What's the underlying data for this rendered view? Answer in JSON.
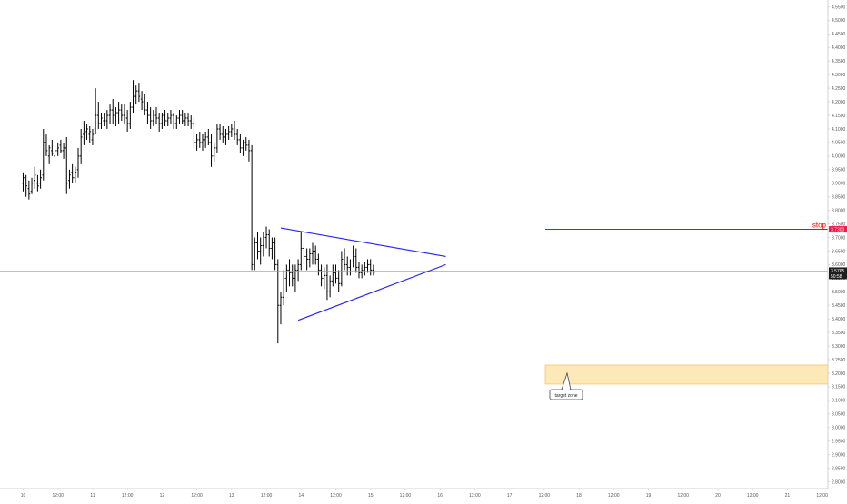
{
  "chart_data": {
    "type": "ohlc",
    "title": "",
    "xlabel": "",
    "ylabel": "",
    "ylim": [
      2.775,
      4.575
    ],
    "y_ticks": [
      "2.8000",
      "2.8500",
      "2.9000",
      "2.9500",
      "3.0000",
      "3.0500",
      "3.1000",
      "3.1500",
      "3.2000",
      "3.2500",
      "3.3000",
      "3.3500",
      "3.4000",
      "3.4500",
      "3.5000",
      "3.5500",
      "3.6000",
      "3.6500",
      "3.7000",
      "3.7500",
      "3.8000",
      "3.8500",
      "3.9000",
      "3.9500",
      "4.0000",
      "4.0500",
      "4.1000",
      "4.1500",
      "4.2000",
      "4.2500",
      "4.3000",
      "4.3500",
      "4.4000",
      "4.4500",
      "4.5000",
      "4.5500"
    ],
    "x_ticks": [
      "10",
      "12:00",
      "11",
      "12:00",
      "12",
      "12:00",
      "13",
      "12:00",
      "14",
      "12:00",
      "15",
      "12:00",
      "16",
      "12:00",
      "17",
      "12:00",
      "18",
      "12:00",
      "19",
      "12:00",
      "20",
      "12:00",
      "21",
      "12:00"
    ],
    "x_tick_index": [
      0,
      12,
      24,
      36,
      48,
      60,
      72,
      84,
      96,
      108,
      120,
      132,
      144,
      156,
      168,
      180,
      192,
      204,
      216,
      228,
      240,
      252,
      264,
      276
    ],
    "x_index_range": [
      -8,
      278
    ],
    "ohlc_keys": [
      "open",
      "high",
      "low",
      "close"
    ],
    "bars": [
      [
        3.9,
        3.94,
        3.87,
        3.92
      ],
      [
        3.9,
        3.93,
        3.85,
        3.89
      ],
      [
        3.88,
        3.91,
        3.84,
        3.86
      ],
      [
        3.87,
        3.92,
        3.86,
        3.9
      ],
      [
        3.91,
        3.96,
        3.88,
        3.93
      ],
      [
        3.9,
        3.93,
        3.87,
        3.89
      ],
      [
        3.9,
        3.95,
        3.88,
        3.92
      ],
      [
        3.93,
        4.1,
        3.91,
        4.05
      ],
      [
        4.05,
        4.08,
        4.0,
        4.02
      ],
      [
        4.0,
        4.04,
        3.97,
        4.03
      ],
      [
        4.02,
        4.06,
        4.0,
        4.01
      ],
      [
        4.0,
        4.04,
        3.98,
        4.02
      ],
      [
        4.02,
        4.05,
        4.0,
        4.03
      ],
      [
        4.04,
        4.06,
        4.01,
        4.02
      ],
      [
        4.02,
        4.05,
        3.99,
        4.03
      ],
      [
        4.03,
        4.07,
        3.86,
        3.9
      ],
      [
        3.91,
        3.95,
        3.88,
        3.93
      ],
      [
        3.94,
        3.97,
        3.9,
        3.92
      ],
      [
        3.92,
        3.96,
        3.9,
        3.94
      ],
      [
        3.95,
        4.03,
        3.92,
        4.0
      ],
      [
        4.0,
        4.1,
        3.97,
        4.07
      ],
      [
        4.08,
        4.13,
        4.04,
        4.1
      ],
      [
        4.09,
        4.12,
        4.06,
        4.1
      ],
      [
        4.08,
        4.11,
        4.05,
        4.09
      ],
      [
        4.06,
        4.1,
        4.04,
        4.08
      ],
      [
        4.1,
        4.25,
        4.08,
        4.15
      ],
      [
        4.15,
        4.2,
        4.1,
        4.12
      ],
      [
        4.12,
        4.16,
        4.1,
        4.14
      ],
      [
        4.13,
        4.16,
        4.11,
        4.14
      ],
      [
        4.13,
        4.17,
        4.1,
        4.15
      ],
      [
        4.15,
        4.19,
        4.12,
        4.17
      ],
      [
        4.17,
        4.21,
        4.12,
        4.15
      ],
      [
        4.14,
        4.18,
        4.11,
        4.16
      ],
      [
        4.16,
        4.2,
        4.12,
        4.17
      ],
      [
        4.17,
        4.19,
        4.13,
        4.15
      ],
      [
        4.15,
        4.19,
        4.12,
        4.14
      ],
      [
        4.14,
        4.17,
        4.09,
        4.12
      ],
      [
        4.12,
        4.2,
        4.1,
        4.18
      ],
      [
        4.18,
        4.28,
        4.16,
        4.22
      ],
      [
        4.22,
        4.26,
        4.19,
        4.24
      ],
      [
        4.24,
        4.27,
        4.2,
        4.22
      ],
      [
        4.21,
        4.24,
        4.17,
        4.2
      ],
      [
        4.2,
        4.23,
        4.15,
        4.17
      ],
      [
        4.17,
        4.2,
        4.12,
        4.15
      ],
      [
        4.15,
        4.18,
        4.1,
        4.13
      ],
      [
        4.13,
        4.17,
        4.11,
        4.15
      ],
      [
        4.15,
        4.18,
        4.12,
        4.14
      ],
      [
        4.14,
        4.16,
        4.09,
        4.12
      ],
      [
        4.12,
        4.16,
        4.1,
        4.15
      ],
      [
        4.15,
        4.17,
        4.11,
        4.13
      ],
      [
        4.13,
        4.16,
        4.11,
        4.14
      ],
      [
        4.14,
        4.17,
        4.12,
        4.15
      ],
      [
        4.15,
        4.16,
        4.1,
        4.12
      ],
      [
        4.12,
        4.15,
        4.1,
        4.14
      ],
      [
        4.14,
        4.17,
        4.12,
        4.15
      ],
      [
        4.15,
        4.17,
        4.12,
        4.13
      ],
      [
        4.13,
        4.16,
        4.11,
        4.14
      ],
      [
        4.14,
        4.16,
        4.11,
        4.13
      ],
      [
        4.13,
        4.15,
        4.1,
        4.12
      ],
      [
        4.12,
        4.14,
        4.03,
        4.05
      ],
      [
        4.05,
        4.08,
        4.02,
        4.06
      ],
      [
        4.06,
        4.09,
        4.03,
        4.05
      ],
      [
        4.05,
        4.08,
        4.02,
        4.06
      ],
      [
        4.06,
        4.09,
        4.03,
        4.07
      ],
      [
        4.07,
        4.1,
        4.04,
        4.05
      ],
      [
        4.05,
        4.08,
        3.96,
        4.0
      ],
      [
        4.0,
        4.05,
        3.98,
        4.03
      ],
      [
        4.03,
        4.12,
        4.01,
        4.1
      ],
      [
        4.1,
        4.12,
        4.06,
        4.08
      ],
      [
        4.08,
        4.11,
        4.05,
        4.07
      ],
      [
        4.07,
        4.1,
        4.04,
        4.08
      ],
      [
        4.08,
        4.11,
        4.06,
        4.09
      ],
      [
        4.09,
        4.12,
        4.07,
        4.1
      ],
      [
        4.1,
        4.13,
        4.06,
        4.08
      ],
      [
        4.08,
        4.1,
        4.04,
        4.06
      ],
      [
        4.06,
        4.08,
        4.01,
        4.03
      ],
      [
        4.03,
        4.06,
        4.0,
        4.05
      ],
      [
        4.05,
        4.07,
        4.02,
        4.04
      ],
      [
        4.04,
        4.06,
        3.98,
        4.02
      ],
      [
        4.02,
        4.04,
        3.58,
        3.6
      ],
      [
        3.6,
        3.7,
        3.58,
        3.68
      ],
      [
        3.68,
        3.72,
        3.62,
        3.65
      ],
      [
        3.65,
        3.7,
        3.6,
        3.67
      ],
      [
        3.67,
        3.72,
        3.63,
        3.7
      ],
      [
        3.7,
        3.74,
        3.66,
        3.71
      ],
      [
        3.71,
        3.73,
        3.63,
        3.66
      ],
      [
        3.66,
        3.7,
        3.62,
        3.68
      ],
      [
        3.68,
        3.7,
        3.58,
        3.6
      ],
      [
        3.6,
        3.62,
        3.31,
        3.45
      ],
      [
        3.45,
        3.5,
        3.38,
        3.48
      ],
      [
        3.48,
        3.58,
        3.45,
        3.55
      ],
      [
        3.55,
        3.6,
        3.5,
        3.58
      ],
      [
        3.58,
        3.62,
        3.52,
        3.57
      ],
      [
        3.57,
        3.6,
        3.52,
        3.55
      ],
      [
        3.55,
        3.6,
        3.5,
        3.58
      ],
      [
        3.58,
        3.62,
        3.54,
        3.6
      ],
      [
        3.6,
        3.72,
        3.58,
        3.66
      ],
      [
        3.66,
        3.68,
        3.6,
        3.63
      ],
      [
        3.63,
        3.66,
        3.58,
        3.62
      ],
      [
        3.62,
        3.66,
        3.59,
        3.64
      ],
      [
        3.64,
        3.68,
        3.6,
        3.65
      ],
      [
        3.65,
        3.67,
        3.6,
        3.62
      ],
      [
        3.62,
        3.64,
        3.56,
        3.58
      ],
      [
        3.58,
        3.6,
        3.52,
        3.55
      ],
      [
        3.55,
        3.59,
        3.51,
        3.56
      ],
      [
        3.56,
        3.6,
        3.47,
        3.5
      ],
      [
        3.5,
        3.56,
        3.48,
        3.54
      ],
      [
        3.54,
        3.6,
        3.52,
        3.57
      ],
      [
        3.57,
        3.6,
        3.53,
        3.55
      ],
      [
        3.55,
        3.58,
        3.5,
        3.53
      ],
      [
        3.53,
        3.65,
        3.52,
        3.62
      ],
      [
        3.62,
        3.66,
        3.58,
        3.6
      ],
      [
        3.6,
        3.63,
        3.56,
        3.59
      ],
      [
        3.59,
        3.62,
        3.56,
        3.61
      ],
      [
        3.61,
        3.67,
        3.59,
        3.63
      ],
      [
        3.63,
        3.66,
        3.57,
        3.59
      ],
      [
        3.59,
        3.61,
        3.55,
        3.57
      ],
      [
        3.57,
        3.6,
        3.55,
        3.58
      ],
      [
        3.58,
        3.61,
        3.56,
        3.59
      ],
      [
        3.59,
        3.62,
        3.57,
        3.6
      ],
      [
        3.6,
        3.62,
        3.56,
        3.58
      ],
      [
        3.58,
        3.6,
        3.56,
        3.57
      ]
    ],
    "annotations": {
      "stop_label": "stop",
      "stop_value": "3.7300",
      "stop_level": 3.73,
      "last_price_value": "3.5765",
      "last_price_sub": "50:58",
      "last_price_level": 3.5765,
      "target_label": "target zone",
      "target_zone": [
        3.16,
        3.23
      ],
      "triangle_upper": [
        [
          89,
          3.735
        ],
        [
          146,
          3.63
        ]
      ],
      "triangle_lower": [
        [
          95,
          3.395
        ],
        [
          146,
          3.6
        ]
      ]
    },
    "colors": {
      "bar": "#000000",
      "stop_line": "#ff0000",
      "stop_badge": "#ff1744",
      "triangle": "#2121ff",
      "target_fill": "#fde9b8",
      "target_border": "#f5c561",
      "last_price_line": "#999999",
      "last_price_badge": "#1f1f1f",
      "axis": "#d0d0d0",
      "label_bg": "#ffffff",
      "label_border": "#444444"
    }
  }
}
